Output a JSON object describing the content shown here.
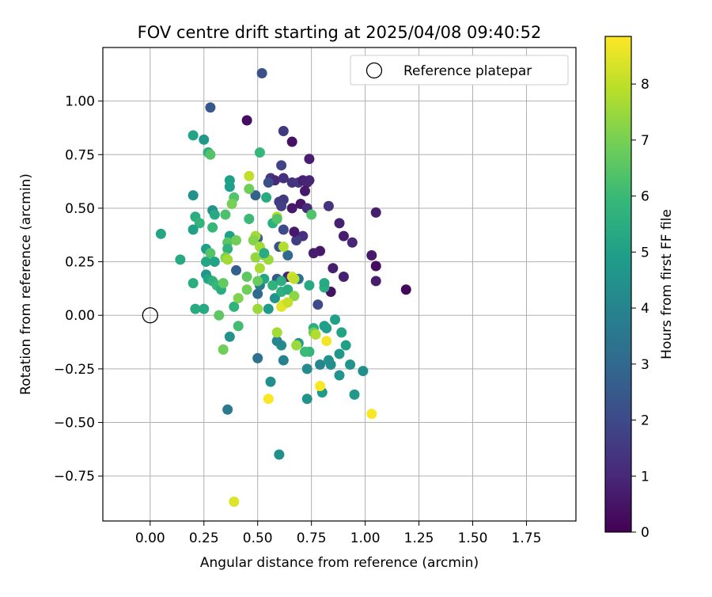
{
  "chart_data": {
    "type": "scatter",
    "title": "FOV centre drift starting at 2025/04/08 09:40:52",
    "xlabel": "Angular distance from reference (arcmin)",
    "ylabel": "Rotation from reference (arcmin)",
    "xlim": [
      -0.22,
      1.98
    ],
    "ylim": [
      -0.96,
      1.25
    ],
    "xticks": [
      "0.00",
      "0.25",
      "0.50",
      "0.75",
      "1.00",
      "1.25",
      "1.50",
      "1.75"
    ],
    "yticks": [
      "−0.75",
      "−0.50",
      "−0.25",
      "0.00",
      "0.25",
      "0.50",
      "0.75",
      "1.00"
    ],
    "grid": true,
    "legend": {
      "position": "top-right",
      "entries": [
        {
          "label": "Reference platepar",
          "marker": "open-circle"
        }
      ]
    },
    "reference_point": {
      "x": 0.0,
      "y": 0.0
    },
    "colorbar": {
      "label": "Hours from first FF file",
      "colormap": "viridis",
      "range": [
        0,
        8.85
      ],
      "ticks": [
        "0",
        "1",
        "2",
        "3",
        "4",
        "5",
        "6",
        "7",
        "8"
      ],
      "stops": [
        "#440154",
        "#482878",
        "#3e4989",
        "#31688e",
        "#26828e",
        "#1f9e89",
        "#35b779",
        "#6ece58",
        "#b5de2b",
        "#fde725"
      ]
    },
    "points": [
      [
        0.52,
        1.13,
        2.2
      ],
      [
        0.28,
        0.97,
        2.4
      ],
      [
        0.45,
        0.91,
        0.3
      ],
      [
        0.62,
        0.86,
        1.5
      ],
      [
        0.66,
        0.81,
        0.4
      ],
      [
        0.74,
        0.73,
        0.7
      ],
      [
        0.27,
        0.76,
        2.6
      ],
      [
        0.61,
        0.7,
        1.8
      ],
      [
        0.56,
        0.64,
        1.4
      ],
      [
        0.58,
        0.63,
        1.0
      ],
      [
        0.62,
        0.64,
        1.2
      ],
      [
        0.66,
        0.62,
        1.3
      ],
      [
        0.69,
        0.62,
        1.4
      ],
      [
        0.71,
        0.63,
        0.8
      ],
      [
        0.73,
        0.62,
        0.9
      ],
      [
        0.74,
        0.63,
        0.9
      ],
      [
        0.72,
        0.58,
        0.6
      ],
      [
        0.55,
        0.62,
        2.2
      ],
      [
        0.6,
        0.53,
        1.6
      ],
      [
        0.62,
        0.54,
        1.5
      ],
      [
        0.61,
        0.51,
        1.7
      ],
      [
        0.66,
        0.5,
        0.6
      ],
      [
        0.7,
        0.52,
        0.5
      ],
      [
        0.73,
        0.5,
        1.1
      ],
      [
        0.83,
        0.51,
        1.3
      ],
      [
        0.88,
        0.43,
        0.8
      ],
      [
        0.9,
        0.37,
        0.7
      ],
      [
        0.94,
        0.34,
        0.9
      ],
      [
        1.05,
        0.48,
        0.7
      ],
      [
        1.03,
        0.28,
        0.6
      ],
      [
        1.05,
        0.23,
        0.3
      ],
      [
        1.05,
        0.16,
        0.7
      ],
      [
        1.19,
        0.12,
        0.2
      ],
      [
        0.85,
        0.22,
        0.7
      ],
      [
        0.9,
        0.18,
        0.8
      ],
      [
        0.84,
        0.11,
        0.4
      ],
      [
        0.79,
        0.3,
        0.6
      ],
      [
        0.76,
        0.29,
        0.7
      ],
      [
        0.71,
        0.37,
        1.2
      ],
      [
        0.68,
        0.35,
        1.6
      ],
      [
        0.67,
        0.39,
        0.6
      ],
      [
        0.62,
        0.4,
        2.0
      ],
      [
        0.6,
        0.32,
        2.3
      ],
      [
        0.64,
        0.28,
        3.0
      ],
      [
        0.64,
        0.18,
        0.9
      ],
      [
        0.59,
        0.17,
        2.5
      ],
      [
        0.69,
        0.17,
        3.3
      ],
      [
        0.78,
        0.05,
        2.0
      ],
      [
        0.49,
        0.56,
        2.8
      ],
      [
        0.5,
        0.36,
        2.6
      ],
      [
        0.5,
        0.1,
        3.0
      ],
      [
        0.51,
        0.14,
        3.6
      ],
      [
        0.4,
        0.21,
        2.7
      ],
      [
        0.5,
        -0.2,
        3.3
      ],
      [
        0.6,
        -0.65,
        4.4
      ],
      [
        0.36,
        -0.44,
        3.6
      ],
      [
        0.56,
        -0.31,
        4.4
      ],
      [
        0.62,
        -0.21,
        3.9
      ],
      [
        0.61,
        -0.14,
        4.2
      ],
      [
        0.59,
        -0.12,
        4.1
      ],
      [
        0.69,
        -0.13,
        4.7
      ],
      [
        0.73,
        -0.25,
        4.2
      ],
      [
        0.79,
        -0.23,
        4.1
      ],
      [
        0.8,
        -0.36,
        4.8
      ],
      [
        0.73,
        -0.39,
        4.5
      ],
      [
        0.83,
        -0.21,
        4.5
      ],
      [
        0.84,
        -0.23,
        4.4
      ],
      [
        0.88,
        -0.28,
        4.6
      ],
      [
        0.88,
        -0.18,
        4.7
      ],
      [
        0.91,
        -0.14,
        5.0
      ],
      [
        0.93,
        -0.23,
        4.6
      ],
      [
        0.99,
        -0.26,
        4.4
      ],
      [
        0.95,
        -0.37,
        4.7
      ],
      [
        0.89,
        -0.08,
        5.1
      ],
      [
        0.86,
        -0.02,
        5.0
      ],
      [
        0.81,
        -0.05,
        4.9
      ],
      [
        0.82,
        -0.06,
        5.0
      ],
      [
        0.76,
        -0.06,
        5.5
      ],
      [
        0.74,
        -0.17,
        5.8
      ],
      [
        0.72,
        -0.17,
        6.0
      ],
      [
        0.74,
        0.14,
        5.3
      ],
      [
        0.81,
        0.13,
        5.5
      ],
      [
        0.81,
        0.15,
        5.3
      ],
      [
        0.55,
        0.03,
        4.8
      ],
      [
        0.58,
        0.08,
        4.6
      ],
      [
        0.61,
        0.11,
        5.6
      ],
      [
        0.64,
        0.12,
        5.4
      ],
      [
        0.57,
        0.14,
        5.7
      ],
      [
        0.61,
        0.16,
        5.5
      ],
      [
        0.53,
        0.17,
        5.2
      ],
      [
        0.57,
        0.43,
        5.6
      ],
      [
        0.54,
        0.55,
        5.4
      ],
      [
        0.51,
        0.76,
        5.9
      ],
      [
        0.2,
        0.84,
        5.1
      ],
      [
        0.25,
        0.82,
        4.7
      ],
      [
        0.27,
        0.76,
        5.6
      ],
      [
        0.28,
        0.75,
        6.4
      ],
      [
        0.2,
        0.56,
        4.5
      ],
      [
        0.21,
        0.46,
        5.5
      ],
      [
        0.23,
        0.43,
        5.8
      ],
      [
        0.2,
        0.4,
        5.0
      ],
      [
        0.29,
        0.49,
        4.5
      ],
      [
        0.3,
        0.47,
        5.3
      ],
      [
        0.05,
        0.38,
        5.2
      ],
      [
        0.14,
        0.26,
        5.3
      ],
      [
        0.26,
        0.31,
        4.9
      ],
      [
        0.26,
        0.25,
        5.2
      ],
      [
        0.28,
        0.29,
        6.4
      ],
      [
        0.3,
        0.25,
        5.1
      ],
      [
        0.29,
        0.41,
        5.9
      ],
      [
        0.35,
        0.47,
        6.3
      ],
      [
        0.37,
        0.6,
        4.9
      ],
      [
        0.39,
        0.55,
        6.4
      ],
      [
        0.38,
        0.52,
        7.0
      ],
      [
        0.37,
        0.37,
        5.0
      ],
      [
        0.36,
        0.34,
        6.5
      ],
      [
        0.36,
        0.31,
        5.7
      ],
      [
        0.4,
        0.35,
        6.9
      ],
      [
        0.35,
        0.27,
        7.1
      ],
      [
        0.36,
        0.26,
        7.6
      ],
      [
        0.26,
        0.19,
        4.6
      ],
      [
        0.27,
        0.17,
        5.1
      ],
      [
        0.29,
        0.16,
        5.6
      ],
      [
        0.2,
        0.15,
        5.5
      ],
      [
        0.21,
        0.03,
        5.4
      ],
      [
        0.25,
        0.03,
        5.3
      ],
      [
        0.31,
        0.14,
        5.9
      ],
      [
        0.33,
        0.12,
        5.5
      ],
      [
        0.34,
        0.15,
        6.7
      ],
      [
        0.32,
        0.0,
        6.6
      ],
      [
        0.39,
        0.04,
        5.7
      ],
      [
        0.41,
        0.08,
        7.1
      ],
      [
        0.41,
        -0.05,
        6.1
      ],
      [
        0.37,
        -0.1,
        4.5
      ],
      [
        0.34,
        -0.16,
        6.9
      ],
      [
        0.46,
        0.65,
        8.0
      ],
      [
        0.46,
        0.59,
        6.9
      ],
      [
        0.46,
        0.45,
        6.0
      ],
      [
        0.45,
        0.18,
        6.6
      ],
      [
        0.45,
        0.12,
        6.9
      ],
      [
        0.49,
        0.37,
        7.6
      ],
      [
        0.48,
        0.35,
        7.2
      ],
      [
        0.49,
        0.27,
        7.4
      ],
      [
        0.51,
        0.32,
        7.6
      ],
      [
        0.51,
        0.22,
        7.7
      ],
      [
        0.5,
        0.16,
        6.8
      ],
      [
        0.53,
        0.28,
        7.1
      ],
      [
        0.55,
        0.26,
        7.5
      ],
      [
        0.53,
        0.29,
        5.4
      ],
      [
        0.5,
        0.03,
        7.5
      ],
      [
        0.59,
        0.46,
        7.9
      ],
      [
        0.59,
        0.45,
        6.4
      ],
      [
        0.62,
        0.32,
        7.8
      ],
      [
        0.75,
        0.47,
        6.4
      ],
      [
        0.66,
        0.18,
        8.3
      ],
      [
        0.67,
        0.17,
        8.0
      ],
      [
        0.67,
        0.09,
        7.3
      ],
      [
        0.62,
        0.05,
        8.4
      ],
      [
        0.61,
        0.04,
        8.5
      ],
      [
        0.64,
        0.06,
        8.1
      ],
      [
        0.59,
        -0.08,
        7.6
      ],
      [
        0.68,
        -0.14,
        7.5
      ],
      [
        0.76,
        -0.08,
        6.9
      ],
      [
        0.77,
        -0.09,
        7.8
      ],
      [
        0.82,
        -0.12,
        8.7
      ],
      [
        0.79,
        -0.33,
        8.8
      ],
      [
        0.55,
        -0.39,
        8.8
      ],
      [
        1.03,
        -0.46,
        8.8
      ],
      [
        0.39,
        -0.87,
        8.4
      ],
      [
        0.37,
        0.63,
        5.0
      ]
    ]
  }
}
